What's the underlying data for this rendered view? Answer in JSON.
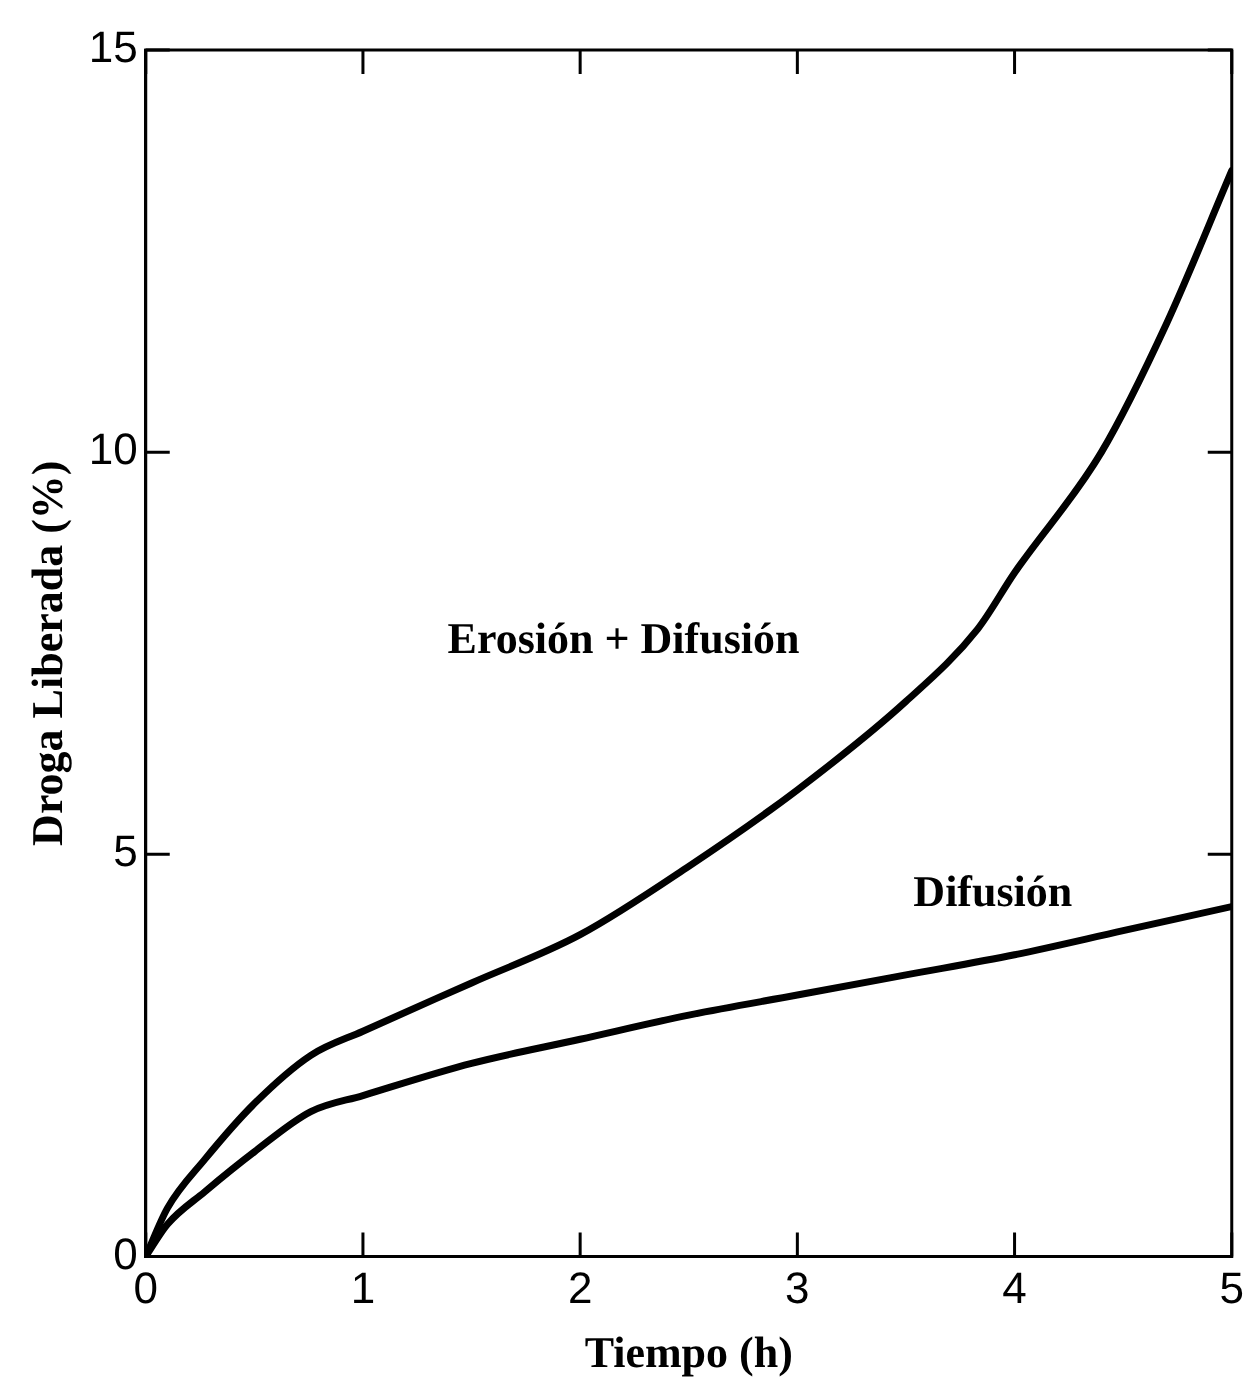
{
  "chart_data": {
    "type": "line",
    "xlabel": "Tiempo (h)",
    "ylabel": "Droga Liberada (%)",
    "xlim": [
      0,
      5
    ],
    "xticks": [
      0,
      1,
      2,
      3,
      4,
      5
    ],
    "ylim": [
      0,
      15
    ],
    "yticks": [
      0,
      5,
      10,
      15
    ],
    "grid": false,
    "legend": false,
    "marker": "none",
    "line_style": "solid",
    "series": [
      {
        "name": "Erosión + Difusión",
        "color": "#000000",
        "x": [
          0,
          0.1,
          0.27,
          0.5,
          0.76,
          1,
          1.5,
          2,
          2.5,
          3,
          3.5,
          3.83,
          4,
          4.4,
          4.7,
          5
        ],
        "values": [
          0,
          0.6,
          1.2,
          1.9,
          2.5,
          2.8,
          3.4,
          4.0,
          4.85,
          5.8,
          6.9,
          7.8,
          8.5,
          10.0,
          11.6,
          13.5
        ]
      },
      {
        "name": "Difusión",
        "color": "#000000",
        "x": [
          0,
          0.1,
          0.27,
          0.5,
          0.76,
          1,
          1.5,
          2,
          2.5,
          3,
          3.5,
          4,
          4.5,
          5
        ],
        "values": [
          0,
          0.4,
          0.8,
          1.3,
          1.8,
          2.0,
          2.4,
          2.7,
          3.0,
          3.25,
          3.5,
          3.75,
          4.05,
          4.35
        ]
      }
    ]
  }
}
